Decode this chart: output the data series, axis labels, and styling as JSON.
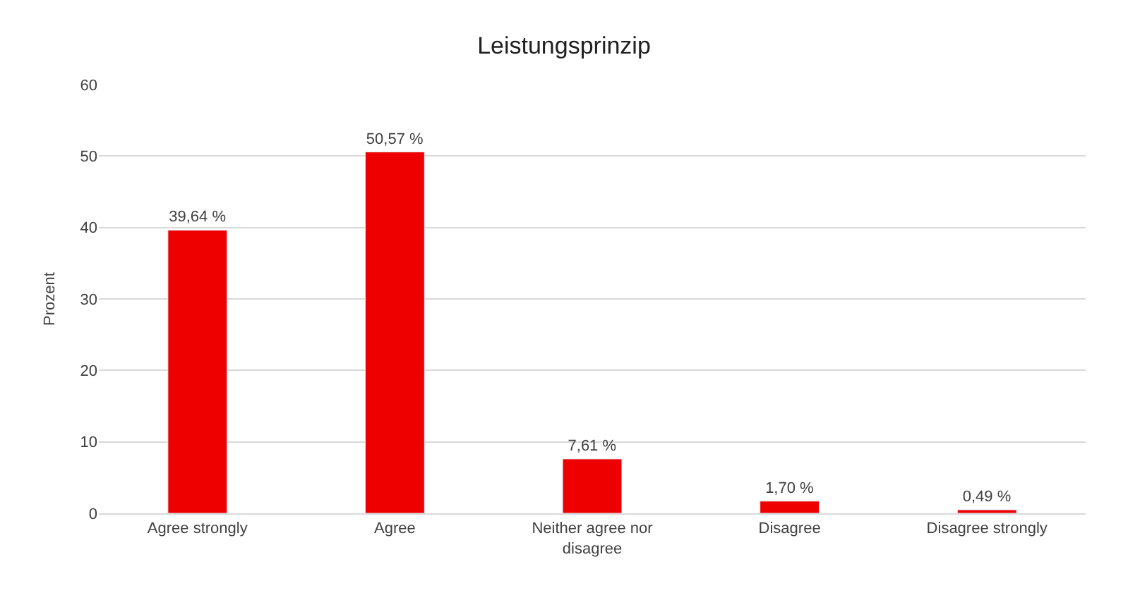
{
  "chart_data": {
    "type": "bar",
    "title": "Leistungsprinzip",
    "ylabel": "Prozent",
    "categories": [
      "Agree strongly",
      "Agree",
      "Neither agree nor disagree",
      "Disagree",
      "Disagree strongly"
    ],
    "values": [
      39.64,
      50.57,
      7.61,
      1.7,
      0.49
    ],
    "value_labels": [
      "39,64 %",
      "50,57 %",
      "7,61 %",
      "1,70 %",
      "0,49 %"
    ],
    "color": "#ee0000",
    "ylim": [
      0,
      60
    ],
    "yticks": [
      0,
      10,
      20,
      30,
      40,
      50,
      60
    ],
    "grid": "y"
  }
}
